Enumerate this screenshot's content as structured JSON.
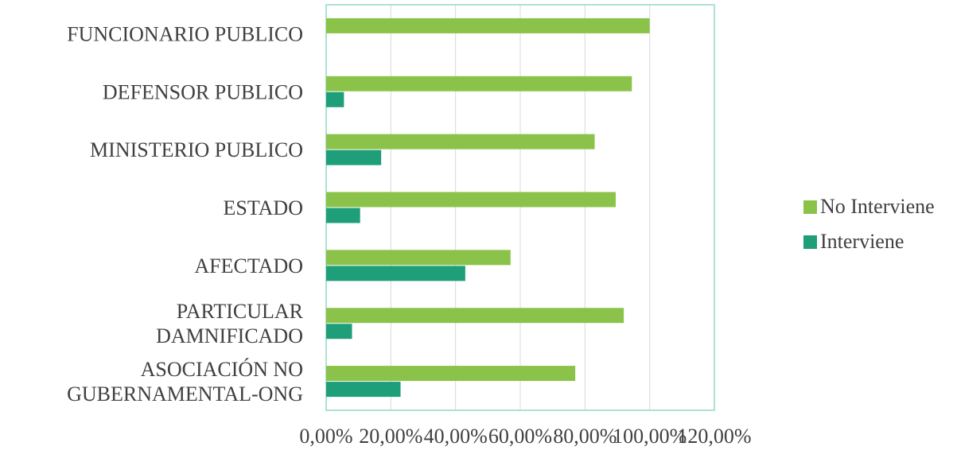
{
  "chart_data": {
    "type": "bar",
    "orientation": "horizontal",
    "categories": [
      [
        "FUNCIONARIO PUBLICO"
      ],
      [
        "DEFENSOR PUBLICO"
      ],
      [
        "MINISTERIO PUBLICO"
      ],
      [
        "ESTADO"
      ],
      [
        "AFECTADO"
      ],
      [
        "PARTICULAR ",
        "DAMNIFICADO"
      ],
      [
        "ASOCIACIÓN NO",
        "GUBERNAMENTAL-ONG"
      ]
    ],
    "series": [
      {
        "name": "No Interviene",
        "color": "#8BC34A",
        "values": [
          100.0,
          94.5,
          83.0,
          89.5,
          57.0,
          92.0,
          77.0
        ]
      },
      {
        "name": "Interviene",
        "color": "#1F9E7A",
        "values": [
          0.0,
          5.5,
          17.0,
          10.5,
          43.0,
          8.0,
          23.0
        ]
      }
    ],
    "xlim": [
      0,
      120
    ],
    "ticks": [
      "0,00%",
      "20,00%",
      "40,00%",
      "60,00%",
      "80,00%",
      "100,00%",
      "120,00%"
    ],
    "grid": true,
    "legend_position": "right",
    "title": "",
    "xlabel": "",
    "ylabel": ""
  }
}
